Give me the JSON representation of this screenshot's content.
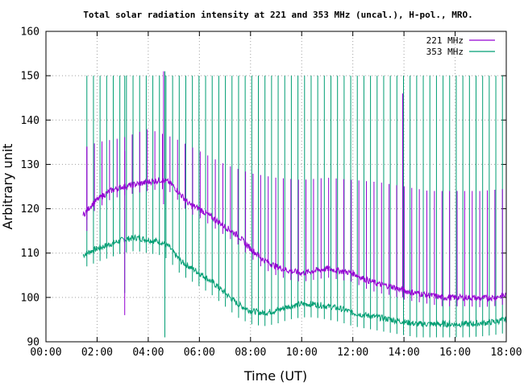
{
  "chart_data": {
    "type": "line",
    "title": "Total solar radiation intensity at 221 and 353 MHz (uncal.), H-pol., MRO.",
    "xlabel": "Time (UT)",
    "ylabel": "Arbitrary unit",
    "xlim": [
      0,
      18
    ],
    "ylim": [
      90,
      160
    ],
    "x_ticks": [
      "00:00",
      "02:00",
      "04:00",
      "06:00",
      "08:00",
      "10:00",
      "12:00",
      "14:00",
      "16:00",
      "18:00"
    ],
    "y_ticks": [
      90,
      100,
      110,
      120,
      130,
      140,
      150,
      160
    ],
    "grid": true,
    "legend_position": "top-right",
    "series": [
      {
        "name": "221 MHz",
        "color": "#9400d3",
        "x": [
          1.45,
          1.6,
          1.8,
          2.0,
          2.5,
          3.0,
          3.5,
          4.0,
          4.5,
          4.8,
          5.0,
          5.3,
          5.6,
          6.0,
          6.5,
          7.0,
          7.5,
          8.0,
          8.5,
          9.0,
          9.5,
          10.0,
          10.5,
          11.0,
          11.5,
          12.0,
          12.5,
          13.0,
          13.5,
          14.0,
          14.5,
          15.0,
          15.5,
          16.0,
          16.5,
          17.0,
          17.5,
          18.0
        ],
        "values": [
          118.5,
          119.5,
          121,
          122,
          124,
          125,
          125.5,
          126,
          126.5,
          126,
          125,
          123,
          121,
          120,
          118,
          116,
          114,
          111,
          108.5,
          107,
          106,
          105.5,
          106,
          106.5,
          106,
          105.5,
          104,
          103,
          102.5,
          101.5,
          101,
          100.5,
          100,
          100,
          100,
          99.8,
          100,
          100.5
        ],
        "spikes": [
          {
            "x": 1.6,
            "top": 134,
            "bottom": 115
          },
          {
            "x": 3.08,
            "top": 133,
            "bottom": 96
          },
          {
            "x": 4.6,
            "top": 151,
            "bottom": 121
          },
          {
            "x": 13.95,
            "top": 146,
            "bottom": 100
          }
        ],
        "spike_top": [
          [
            1.6,
            134
          ],
          [
            2,
            135
          ],
          [
            3,
            136
          ],
          [
            3.5,
            137
          ],
          [
            4.0,
            138
          ],
          [
            5.0,
            136
          ],
          [
            6.0,
            133
          ],
          [
            7.0,
            130
          ],
          [
            8.0,
            128
          ],
          [
            9.0,
            127
          ],
          [
            10.0,
            126.5
          ],
          [
            11.0,
            127
          ],
          [
            12.0,
            126.5
          ],
          [
            13.0,
            126
          ],
          [
            14.0,
            125
          ],
          [
            15.0,
            124
          ],
          [
            16.0,
            124
          ],
          [
            17.0,
            124
          ],
          [
            18.0,
            124.5
          ]
        ],
        "spike_count": 56
      },
      {
        "name": "353 MHz",
        "color": "#009e73",
        "x": [
          1.45,
          1.6,
          1.8,
          2.0,
          2.5,
          3.0,
          3.5,
          4.0,
          4.5,
          4.8,
          5.0,
          5.3,
          5.6,
          6.0,
          6.5,
          7.0,
          7.5,
          8.0,
          8.5,
          9.0,
          9.5,
          10.0,
          10.5,
          11.0,
          11.5,
          12.0,
          12.5,
          13.0,
          13.5,
          14.0,
          14.5,
          15.0,
          15.5,
          16.0,
          16.5,
          17.0,
          17.5,
          18.0
        ],
        "values": [
          109.5,
          110,
          110.5,
          111,
          112,
          113,
          113.5,
          113,
          112.5,
          111.5,
          110,
          108,
          107,
          105.5,
          103.5,
          101,
          98.5,
          97,
          96.5,
          97,
          98,
          98.5,
          98.5,
          98,
          97.5,
          96.5,
          96,
          95.5,
          95,
          94.5,
          94,
          94,
          94,
          94,
          94,
          94.2,
          94.5,
          95
        ],
        "spikes": [
          {
            "x": 3.08,
            "top": 150,
            "bottom": 101
          },
          {
            "x": 4.65,
            "top": 151,
            "bottom": 91
          }
        ],
        "spike_top": [
          [
            1.6,
            150
          ],
          [
            18.0,
            150
          ]
        ],
        "spike_count": 64
      }
    ]
  }
}
